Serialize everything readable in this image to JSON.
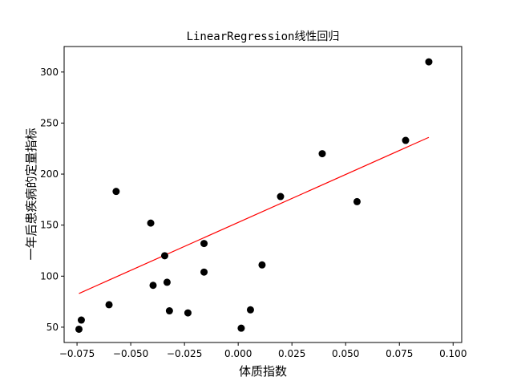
{
  "chart_data": {
    "type": "scatter",
    "title": "LinearRegression线性回归",
    "xlabel": "体质指数",
    "ylabel": "一年后患疾病的定量指标",
    "xlim": [
      -0.081,
      0.104
    ],
    "ylim": [
      35,
      325
    ],
    "xticks": [
      -0.075,
      -0.05,
      -0.025,
      0.0,
      0.025,
      0.05,
      0.075,
      0.1
    ],
    "xtick_labels": [
      "−0.075",
      "−0.050",
      "−0.025",
      "0.000",
      "0.025",
      "0.050",
      "0.075",
      "0.100"
    ],
    "yticks": [
      50,
      100,
      150,
      200,
      250,
      300
    ],
    "ytick_labels": [
      "50",
      "100",
      "150",
      "200",
      "250",
      "300"
    ],
    "grid": false,
    "points": [
      {
        "x": -0.0741,
        "y": 48
      },
      {
        "x": -0.073,
        "y": 57
      },
      {
        "x": -0.0601,
        "y": 72
      },
      {
        "x": -0.0568,
        "y": 183
      },
      {
        "x": -0.0407,
        "y": 152
      },
      {
        "x": -0.0396,
        "y": 91
      },
      {
        "x": -0.0342,
        "y": 120
      },
      {
        "x": -0.0331,
        "y": 94
      },
      {
        "x": -0.032,
        "y": 66
      },
      {
        "x": -0.0234,
        "y": 64
      },
      {
        "x": -0.0159,
        "y": 132
      },
      {
        "x": -0.0159,
        "y": 104
      },
      {
        "x": 0.0014,
        "y": 49
      },
      {
        "x": 0.0057,
        "y": 67
      },
      {
        "x": 0.0111,
        "y": 111
      },
      {
        "x": 0.0197,
        "y": 178
      },
      {
        "x": 0.0391,
        "y": 220
      },
      {
        "x": 0.0553,
        "y": 173
      },
      {
        "x": 0.0779,
        "y": 233
      },
      {
        "x": 0.0887,
        "y": 310
      }
    ],
    "point_color": "#000000",
    "regression_line": {
      "x": [
        -0.0741,
        0.0887
      ],
      "y": [
        83,
        236
      ]
    },
    "line_color": "#ff0000"
  }
}
